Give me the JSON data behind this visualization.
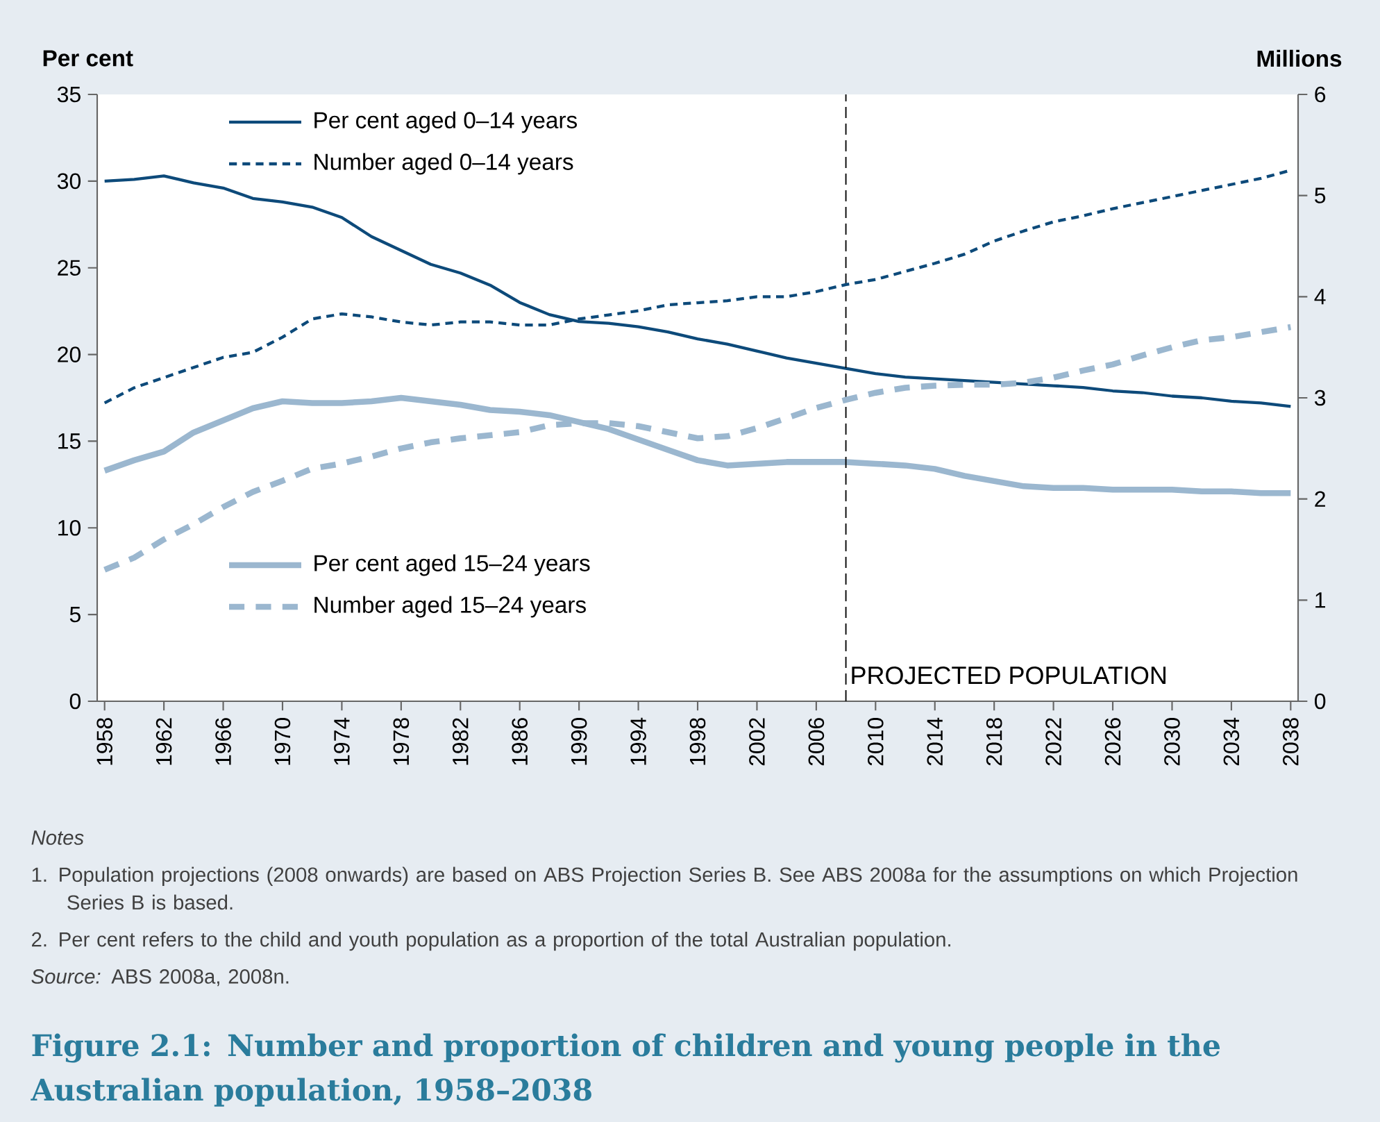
{
  "chart_data": {
    "type": "line",
    "title": "Figure 2.1: Number and proportion of children and young people in the Australian population, 1958–2038",
    "ylabel": "Per cent",
    "y2label": "Millions",
    "x": [
      1958,
      1960,
      1962,
      1964,
      1966,
      1968,
      1970,
      1972,
      1974,
      1976,
      1978,
      1980,
      1982,
      1984,
      1986,
      1988,
      1990,
      1992,
      1994,
      1996,
      1998,
      2000,
      2002,
      2004,
      2006,
      2008,
      2010,
      2012,
      2014,
      2016,
      2018,
      2020,
      2022,
      2024,
      2026,
      2028,
      2030,
      2032,
      2034,
      2036,
      2038
    ],
    "series": [
      {
        "name": "Per cent aged 0–14 years",
        "color": "#0d4a7a",
        "line_style": "solid",
        "values": [
          30.0,
          30.1,
          30.3,
          29.9,
          29.6,
          29.0,
          28.8,
          28.5,
          27.9,
          26.8,
          26.0,
          25.2,
          24.7,
          24.0,
          23.0,
          22.3,
          21.9,
          21.8,
          21.6,
          21.3,
          20.9,
          20.6,
          20.2,
          19.8,
          19.5,
          19.2,
          18.9,
          18.7,
          18.6,
          18.5,
          18.4,
          18.3,
          18.2,
          18.1,
          17.9,
          17.8,
          17.6,
          17.5,
          17.3,
          17.2,
          17.0
        ]
      },
      {
        "name": "Number aged 0–14 years",
        "color": "#0d4a7a",
        "line_style": "dashed",
        "axis": "y2",
        "values": [
          2.95,
          3.1,
          3.2,
          3.3,
          3.4,
          3.45,
          3.6,
          3.78,
          3.83,
          3.8,
          3.75,
          3.72,
          3.75,
          3.75,
          3.72,
          3.72,
          3.78,
          3.82,
          3.86,
          3.92,
          3.94,
          3.96,
          4.0,
          4.0,
          4.05,
          4.12,
          4.17,
          4.25,
          4.33,
          4.42,
          4.55,
          4.65,
          4.74,
          4.8,
          4.87,
          4.93,
          4.99,
          5.05,
          5.11,
          5.17,
          5.25
        ]
      },
      {
        "name": "Per cent aged 15–24 years",
        "color": "#9bb7cf",
        "line_style": "solid",
        "values": [
          13.3,
          13.9,
          14.4,
          15.5,
          16.2,
          16.9,
          17.3,
          17.2,
          17.2,
          17.3,
          17.5,
          17.3,
          17.1,
          16.8,
          16.7,
          16.5,
          16.1,
          15.7,
          15.1,
          14.5,
          13.9,
          13.6,
          13.7,
          13.8,
          13.8,
          13.8,
          13.7,
          13.6,
          13.4,
          13.0,
          12.7,
          12.4,
          12.3,
          12.3,
          12.2,
          12.2,
          12.2,
          12.1,
          12.1,
          12.0,
          12.0
        ]
      },
      {
        "name": "Number aged 15–24 years",
        "color": "#9bb7cf",
        "line_style": "dashed",
        "axis": "y2",
        "values": [
          1.3,
          1.42,
          1.6,
          1.75,
          1.92,
          2.07,
          2.18,
          2.3,
          2.35,
          2.42,
          2.5,
          2.56,
          2.6,
          2.63,
          2.66,
          2.73,
          2.75,
          2.75,
          2.72,
          2.66,
          2.6,
          2.62,
          2.7,
          2.8,
          2.9,
          2.98,
          3.05,
          3.1,
          3.12,
          3.13,
          3.13,
          3.15,
          3.2,
          3.27,
          3.33,
          3.42,
          3.5,
          3.57,
          3.6,
          3.65,
          3.7
        ]
      }
    ],
    "xlim": [
      1957.5,
      2038.5
    ],
    "xticks": [
      1958,
      1962,
      1966,
      1970,
      1974,
      1978,
      1982,
      1986,
      1990,
      1994,
      1998,
      2002,
      2006,
      2010,
      2014,
      2018,
      2022,
      2026,
      2030,
      2034,
      2038
    ],
    "ylim": [
      0,
      35
    ],
    "yticks": [
      0,
      5,
      10,
      15,
      20,
      25,
      30,
      35
    ],
    "y2lim": [
      0,
      6
    ],
    "y2ticks": [
      0,
      1,
      2,
      3,
      4,
      5,
      6
    ],
    "ref_lines": [
      {
        "axis": "x",
        "value": 2008,
        "label": "PROJECTED POPULATION",
        "color": "#000000",
        "line_style": "dashed"
      }
    ],
    "legend": "top left",
    "annotations": [
      "Notes",
      "1. Population projections (2008 onwards) are based on ABS Projection Series B. See ABS 2008a for the assumptions on which Projection Series B is based.",
      "2. Per cent refers to the child and youth population as a proportion of the total Australian population.",
      "*Source:* ABS 2008a, 2008n."
    ]
  }
}
